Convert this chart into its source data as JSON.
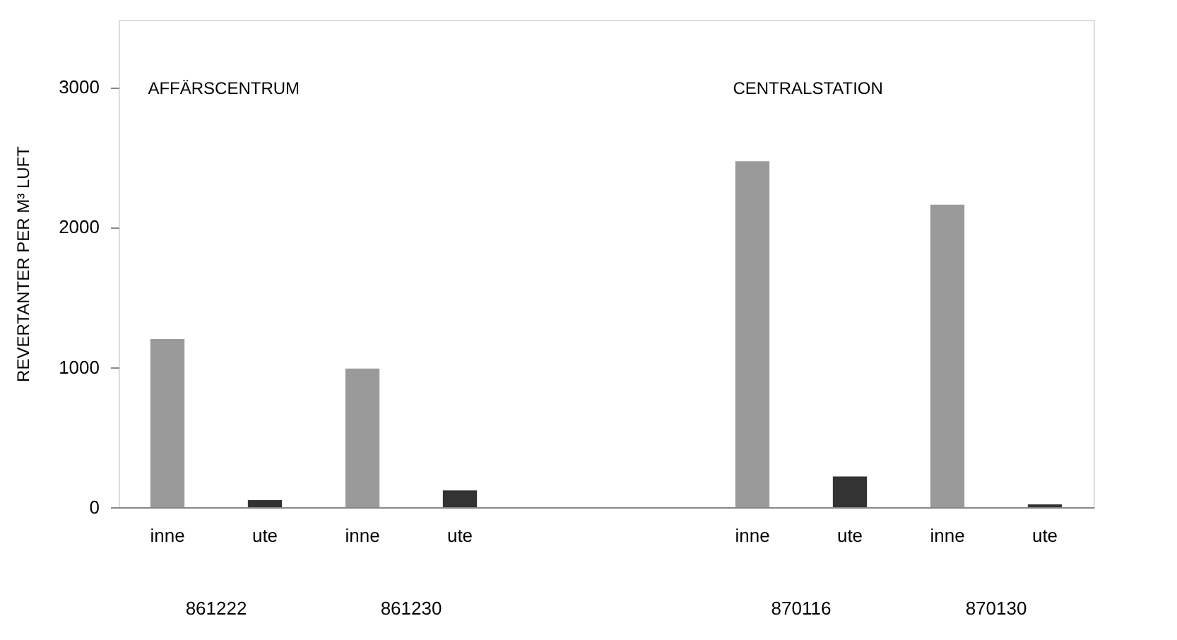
{
  "chart_data": {
    "type": "bar",
    "ylabel": "REVERTANTER PER M³ LUFT",
    "categories": [
      "inne",
      "ute",
      "inne",
      "ute",
      null,
      null,
      "inne",
      "ute",
      "inne",
      "ute"
    ],
    "series": [
      {
        "values": [
          1200,
          50,
          990,
          120,
          null,
          null,
          2470,
          220,
          2160,
          20
        ],
        "colors": [
          "#9a9a9a",
          "#333333",
          "#9a9a9a",
          "#333333",
          "#9a9a9a",
          "#333333",
          "#9a9a9a",
          "#333333",
          "#9a9a9a",
          "#333333"
        ]
      }
    ],
    "ylim": [
      0,
      3480
    ],
    "yticks": [
      0,
      1000,
      2000,
      3000
    ],
    "grid": false,
    "annotations": [
      "AFFÄRSCENTRUM",
      "CENTRALSTATION",
      "861222",
      "861230",
      "870116",
      "870130"
    ]
  }
}
